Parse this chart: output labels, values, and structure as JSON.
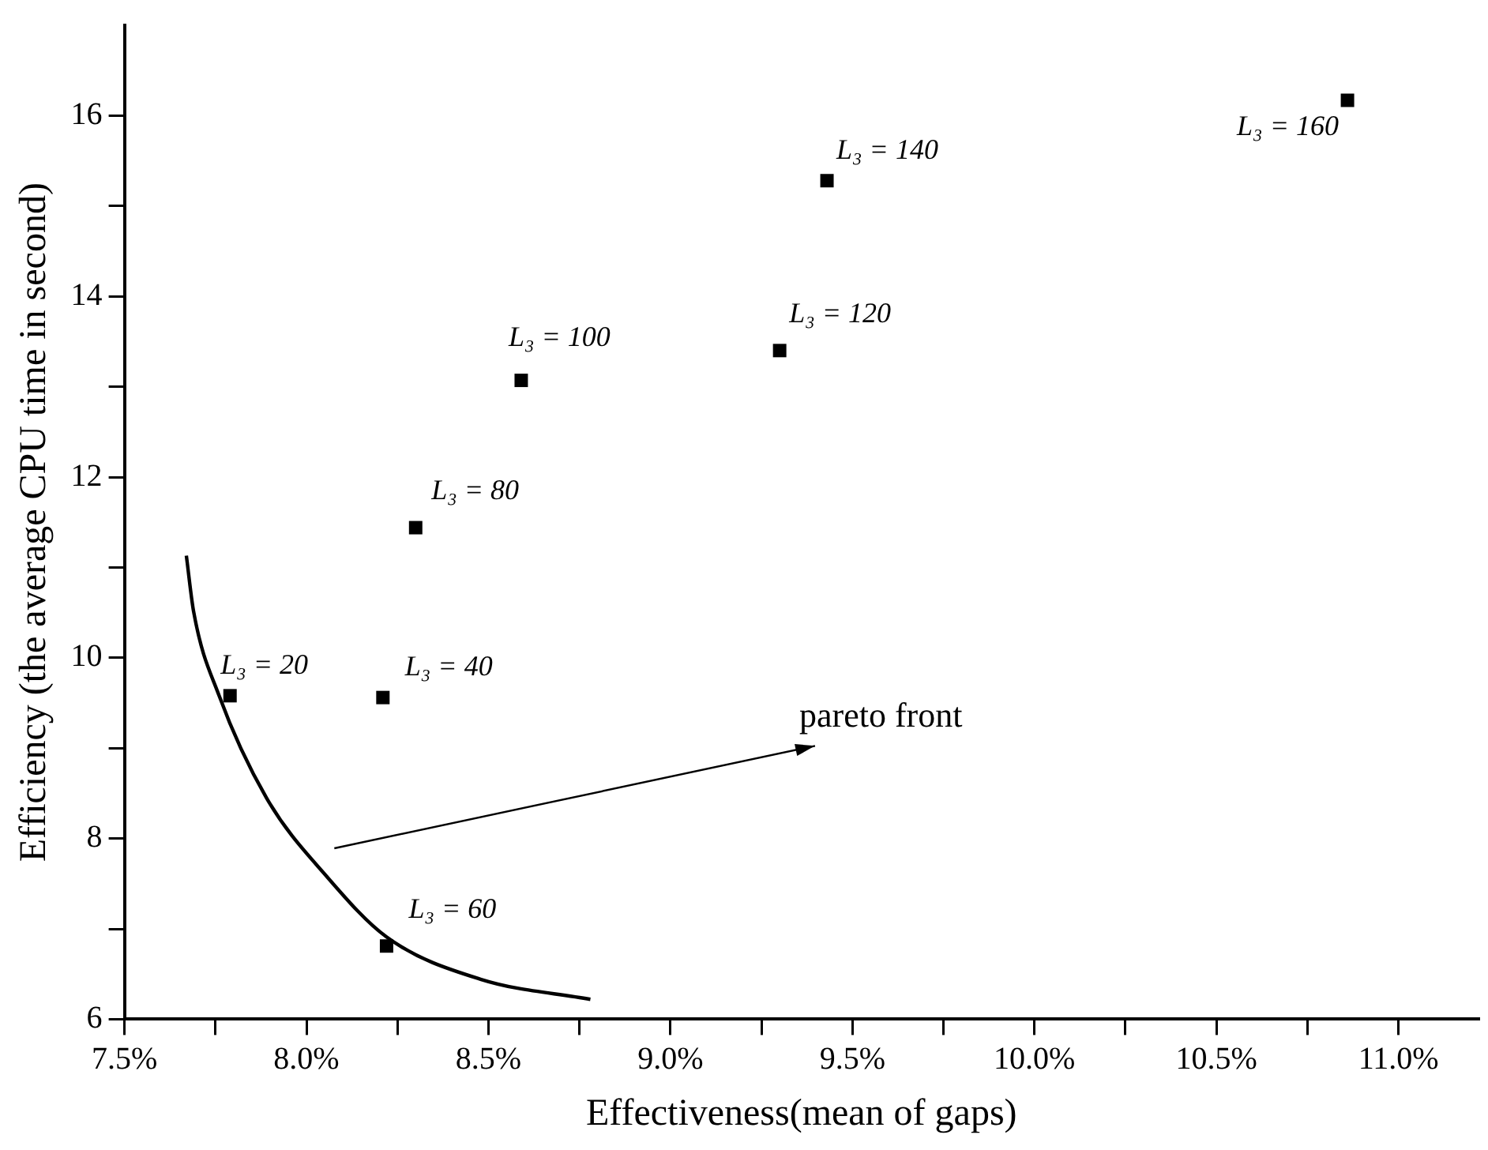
{
  "chart_data": {
    "type": "scatter",
    "xlabel": "Effectiveness(mean of gaps)",
    "ylabel": "Efficiency (the average CPU time in second)",
    "x": [
      7.79,
      8.21,
      8.22,
      8.3,
      8.59,
      9.3,
      9.43,
      10.86
    ],
    "series": [
      {
        "color": "#000000",
        "marker": "square",
        "values": [
          9.58,
          9.56,
          6.81,
          11.44,
          13.07,
          13.4,
          15.28,
          16.17
        ]
      },
      {
        "type": "line",
        "color": "#000000",
        "marker": "none",
        "line_style": "solid",
        "x": [
          7.67,
          7.69,
          7.76,
          7.89,
          8.06,
          8.22,
          8.48,
          8.78
        ],
        "values": [
          11.13,
          10.51,
          9.58,
          8.45,
          7.56,
          6.91,
          6.44,
          6.22
        ]
      }
    ],
    "annotations": [
      {
        "text": "L₃ = 20",
        "x": 7.79,
        "y": 9.58
      },
      {
        "text": "L₃ = 40",
        "x": 8.21,
        "y": 9.56
      },
      {
        "text": "L₃ = 60",
        "x": 8.22,
        "y": 6.81
      },
      {
        "text": "L₃ = 80",
        "x": 8.3,
        "y": 11.44
      },
      {
        "text": "L₃ = 100",
        "x": 8.59,
        "y": 13.07
      },
      {
        "text": "L₃ = 120",
        "x": 9.3,
        "y": 13.4
      },
      {
        "text": "L₃ = 140",
        "x": 9.43,
        "y": 15.28
      },
      {
        "text": "L₃ = 160",
        "x": 10.86,
        "y": 16.17
      },
      "pareto front"
    ],
    "xlim": [
      7.5,
      11.22
    ],
    "xticks": [
      {
        "value": 7.5,
        "label": "7.5%"
      },
      {
        "value": 7.75,
        "label": null
      },
      {
        "value": 8.0,
        "label": "8.0%"
      },
      {
        "value": 8.25,
        "label": null
      },
      {
        "value": 8.5,
        "label": "8.5%"
      },
      {
        "value": 8.75,
        "label": null
      },
      {
        "value": 9.0,
        "label": "9.0%"
      },
      {
        "value": 9.25,
        "label": null
      },
      {
        "value": 9.5,
        "label": "9.5%"
      },
      {
        "value": 9.75,
        "label": null
      },
      {
        "value": 10.0,
        "label": "10.0%"
      },
      {
        "value": 10.25,
        "label": null
      },
      {
        "value": 10.5,
        "label": "10.5%"
      },
      {
        "value": 10.75,
        "label": null
      },
      {
        "value": 11.0,
        "label": "11.0%"
      }
    ],
    "ylim": [
      6,
      17
    ],
    "yticks": [
      6,
      {
        "value": 7,
        "label": null
      },
      8,
      {
        "value": 9,
        "label": null
      },
      10,
      {
        "value": 11,
        "label": null
      },
      12,
      {
        "value": 13,
        "label": null
      },
      14,
      {
        "value": 15,
        "label": null
      },
      16
    ],
    "grid": false,
    "legend": false
  }
}
